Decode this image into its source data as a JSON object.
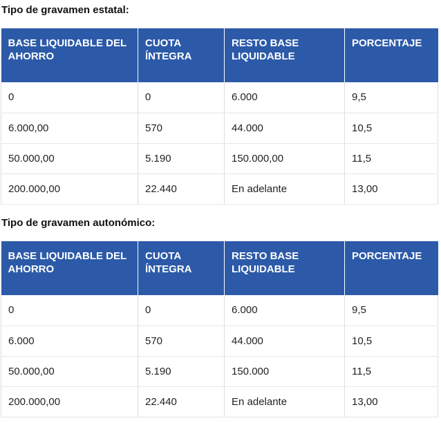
{
  "tables": [
    {
      "title": "Tipo de gravamen estatal:",
      "headers": [
        "BASE LIQUIDABLE DEL AHORRO",
        "CUOTA ÍNTEGRA",
        "RESTO BASE LIQUIDABLE",
        "PORCENTAJE"
      ],
      "rows": [
        [
          "0",
          "0",
          "6.000",
          "9,5"
        ],
        [
          "6.000,00",
          "570",
          "44.000",
          "10,5"
        ],
        [
          "50.000,00",
          "5.190",
          "150.000,00",
          "11,5"
        ],
        [
          "200.000,00",
          "22.440",
          "En adelante",
          "13,00"
        ]
      ]
    },
    {
      "title": "Tipo de gravamen autonómico:",
      "headers": [
        "BASE LIQUIDABLE DEL AHORRO",
        "CUOTA ÍNTEGRA",
        "RESTO BASE LIQUIDABLE",
        "PORCENTAJE"
      ],
      "rows": [
        [
          "0",
          "0",
          "6.000",
          "9,5"
        ],
        [
          "6.000",
          "570",
          "44.000",
          "10,5"
        ],
        [
          "50.000,00",
          "5.190",
          "150.000",
          "11,5"
        ],
        [
          "200.000,00",
          "22.440",
          "En adelante",
          "13,00"
        ]
      ]
    }
  ]
}
